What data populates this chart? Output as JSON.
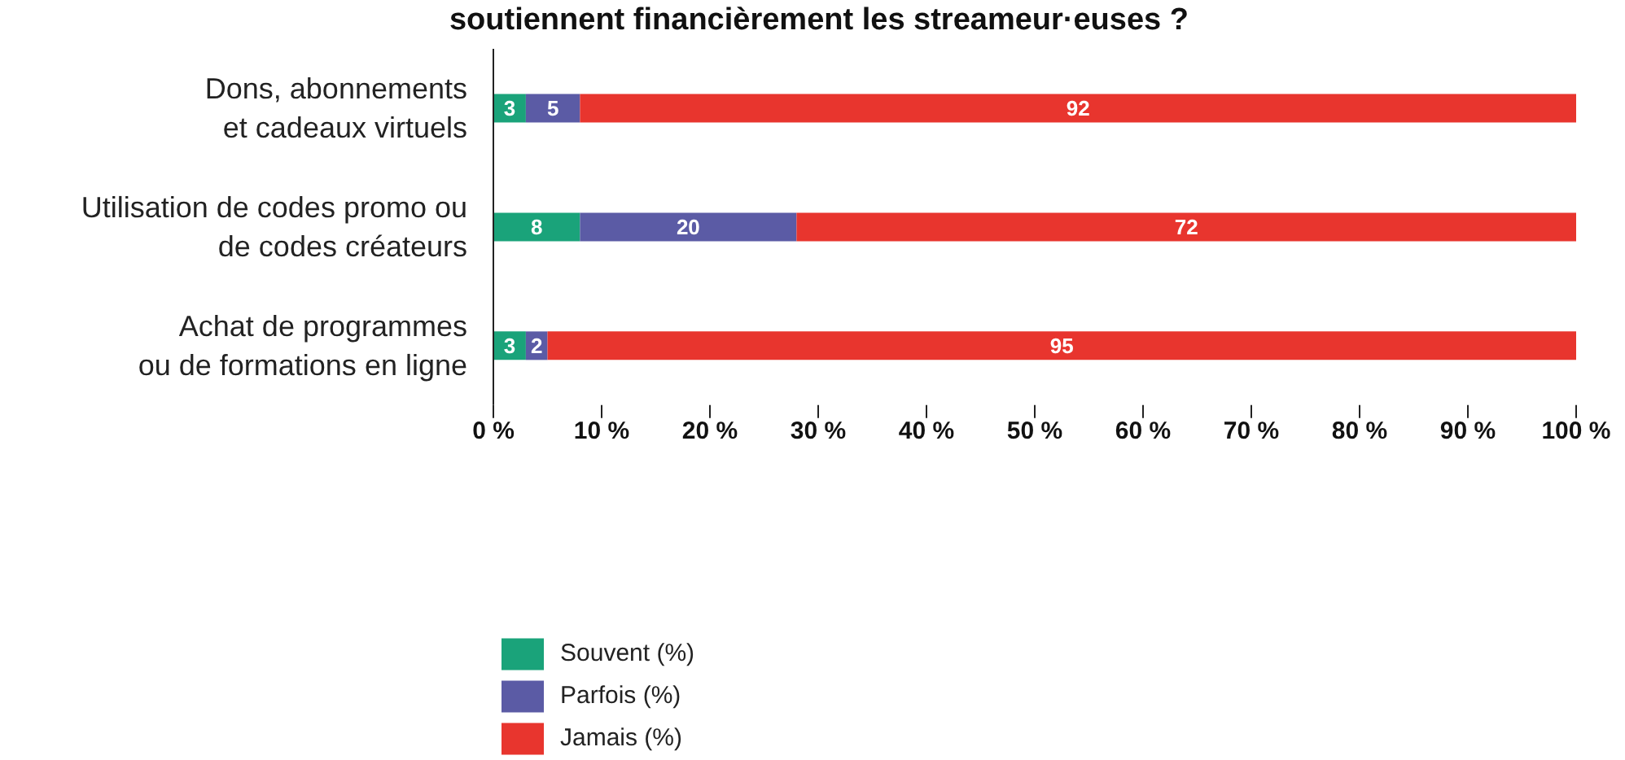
{
  "chart_data": {
    "type": "bar",
    "orientation": "horizontal",
    "stacked": true,
    "title": "soutiennent financièrement les streameur·euses ?",
    "categories": [
      "Dons, abonnements\net cadeaux virtuels",
      "Utilisation de codes promo ou\nde codes créateurs",
      "Achat de programmes\nou de formations en ligne"
    ],
    "series": [
      {
        "name": "Souvent (%)",
        "color": "#1aa37a",
        "values": [
          3,
          8,
          3
        ]
      },
      {
        "name": "Parfois (%)",
        "color": "#5b5ba5",
        "values": [
          5,
          20,
          2
        ]
      },
      {
        "name": "Jamais (%)",
        "color": "#e8352e",
        "values": [
          92,
          72,
          95
        ]
      }
    ],
    "xlim": [
      0,
      100
    ],
    "xticks": [
      {
        "value": 0,
        "label": "0 %"
      },
      {
        "value": 10,
        "label": "10 %"
      },
      {
        "value": 20,
        "label": "20 %"
      },
      {
        "value": 30,
        "label": "30 %"
      },
      {
        "value": 40,
        "label": "40 %"
      },
      {
        "value": 50,
        "label": "50 %"
      },
      {
        "value": 60,
        "label": "60 %"
      },
      {
        "value": 70,
        "label": "70 %"
      },
      {
        "value": 80,
        "label": "80 %"
      },
      {
        "value": 90,
        "label": "90 %"
      },
      {
        "value": 100,
        "label": "100 %"
      }
    ],
    "data_labels": true,
    "legend": "bottom",
    "grid": false
  }
}
